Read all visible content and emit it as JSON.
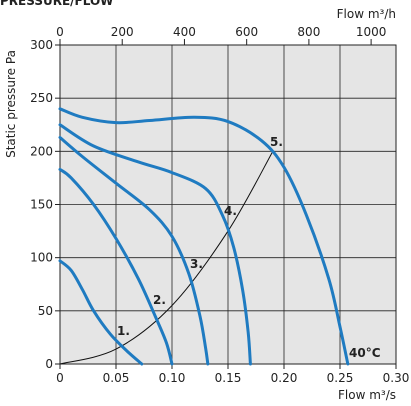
{
  "chart_data": {
    "type": "line",
    "title": "PRESSURE/FLOW",
    "y_label": "Static pressure Pa",
    "x_label": "Flow m³/s",
    "x2_label": "Flow m³/h",
    "annotation": "40°C",
    "xlim": [
      0,
      0.3
    ],
    "xticks": [
      0,
      0.05,
      {
        "value": 0.1,
        "label": "0.10"
      },
      0.15,
      {
        "value": 0.2,
        "label": "0.20"
      },
      0.25,
      {
        "value": 0.3,
        "label": "0.30"
      }
    ],
    "x2lim": [
      0,
      1080
    ],
    "x2ticks": [
      0,
      200,
      400,
      600,
      800,
      1000
    ],
    "ylim": [
      0,
      300
    ],
    "yticks": [
      0,
      50,
      100,
      150,
      200,
      250,
      300
    ],
    "grid": true,
    "series": [
      {
        "name": "1.",
        "color": "#1f7bc1",
        "x": [
          0,
          0.01,
          0.02,
          0.03,
          0.045,
          0.06,
          0.073
        ],
        "values": [
          97,
          88,
          70,
          50,
          28,
          12,
          0
        ]
      },
      {
        "name": "2.",
        "color": "#1f7bc1",
        "x": [
          0,
          0.01,
          0.03,
          0.05,
          0.07,
          0.085,
          0.095,
          0.1
        ],
        "values": [
          183,
          175,
          150,
          118,
          80,
          45,
          20,
          0
        ]
      },
      {
        "name": "3.",
        "color": "#1f7bc1",
        "x": [
          0,
          0.02,
          0.05,
          0.08,
          0.1,
          0.115,
          0.125,
          0.13,
          0.132
        ],
        "values": [
          213,
          195,
          170,
          145,
          120,
          85,
          45,
          15,
          0
        ]
      },
      {
        "name": "4.",
        "color": "#1f7bc1",
        "x": [
          0,
          0.03,
          0.07,
          0.1,
          0.13,
          0.145,
          0.155,
          0.163,
          0.168,
          0.17
        ],
        "values": [
          225,
          205,
          190,
          180,
          165,
          140,
          110,
          70,
          30,
          0
        ]
      },
      {
        "name": "5.",
        "color": "#1f7bc1",
        "x": [
          0,
          0.02,
          0.05,
          0.08,
          0.12,
          0.15,
          0.18,
          0.2,
          0.22,
          0.24,
          0.25,
          0.257
        ],
        "values": [
          240,
          232,
          227,
          229,
          232,
          228,
          210,
          185,
          140,
          80,
          35,
          0
        ]
      }
    ],
    "system_curve": {
      "color": "#111111",
      "x": [
        0,
        0.05,
        0.1,
        0.15,
        0.19
      ],
      "values": [
        0,
        14,
        55,
        125,
        200
      ]
    }
  }
}
